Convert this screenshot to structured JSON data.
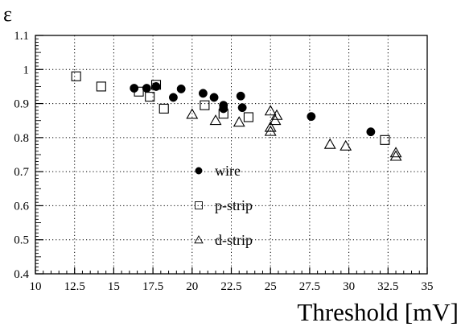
{
  "chart_data": {
    "type": "scatter",
    "xlabel": "Threshold [mV]",
    "ylabel": "ε",
    "xlim": [
      10,
      35
    ],
    "ylim": [
      0.4,
      1.1
    ],
    "x_ticks": [
      "10",
      "12.5",
      "15",
      "17.5",
      "20",
      "22.5",
      "25",
      "27.5",
      "30",
      "32.5",
      "35"
    ],
    "y_ticks": [
      "0.4",
      "0.5",
      "0.6",
      "0.7",
      "0.8",
      "0.9",
      "1",
      "1.1"
    ],
    "grid": true,
    "legend_position": "center",
    "series": [
      {
        "name": "wire",
        "marker": "filled-circle",
        "color": "#000000",
        "points": [
          {
            "x": 16.3,
            "y": 0.945
          },
          {
            "x": 17.1,
            "y": 0.945
          },
          {
            "x": 17.7,
            "y": 0.95
          },
          {
            "x": 18.8,
            "y": 0.918
          },
          {
            "x": 19.3,
            "y": 0.943
          },
          {
            "x": 20.7,
            "y": 0.93
          },
          {
            "x": 21.4,
            "y": 0.918
          },
          {
            "x": 22.0,
            "y": 0.895
          },
          {
            "x": 22.0,
            "y": 0.885
          },
          {
            "x": 23.1,
            "y": 0.922
          },
          {
            "x": 23.2,
            "y": 0.888
          },
          {
            "x": 27.6,
            "y": 0.862
          },
          {
            "x": 31.4,
            "y": 0.817
          }
        ]
      },
      {
        "name": "p-strip",
        "marker": "open-square",
        "color": "#000000",
        "points": [
          {
            "x": 12.6,
            "y": 0.98
          },
          {
            "x": 14.2,
            "y": 0.95
          },
          {
            "x": 16.6,
            "y": 0.935
          },
          {
            "x": 17.3,
            "y": 0.92
          },
          {
            "x": 17.7,
            "y": 0.955
          },
          {
            "x": 18.2,
            "y": 0.885
          },
          {
            "x": 20.8,
            "y": 0.895
          },
          {
            "x": 22.0,
            "y": 0.87
          },
          {
            "x": 23.6,
            "y": 0.86
          },
          {
            "x": 32.3,
            "y": 0.793
          }
        ]
      },
      {
        "name": "d-strip",
        "marker": "open-triangle",
        "color": "#000000",
        "points": [
          {
            "x": 20.0,
            "y": 0.868
          },
          {
            "x": 21.5,
            "y": 0.85
          },
          {
            "x": 23.0,
            "y": 0.845
          },
          {
            "x": 25.0,
            "y": 0.878
          },
          {
            "x": 25.0,
            "y": 0.83
          },
          {
            "x": 25.0,
            "y": 0.818
          },
          {
            "x": 25.3,
            "y": 0.85
          },
          {
            "x": 25.4,
            "y": 0.865
          },
          {
            "x": 28.8,
            "y": 0.78
          },
          {
            "x": 29.8,
            "y": 0.775
          },
          {
            "x": 33.0,
            "y": 0.755
          },
          {
            "x": 33.0,
            "y": 0.745
          }
        ]
      }
    ]
  }
}
